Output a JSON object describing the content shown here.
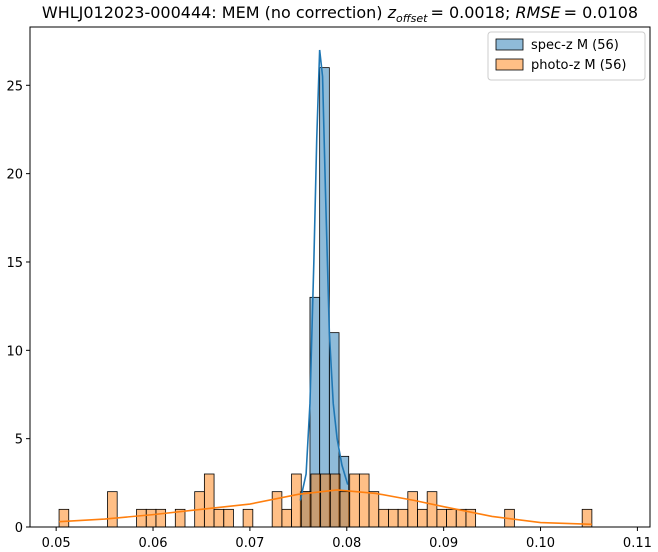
{
  "chart_data": {
    "type": "histogram",
    "title": {
      "text": "WHLJ012023-000444: MEM (no correction)",
      "z_label": "z",
      "z_sub": "offset",
      "z_value": "= 0.0018;",
      "rmse_label": "RMSE",
      "rmse_value": "= 0.0108"
    },
    "xlim": [
      0.0473,
      0.1113
    ],
    "ylim": [
      0,
      28.3
    ],
    "xticks": [
      0.05,
      0.06,
      0.07,
      0.08,
      0.09,
      {
        "value": 0.1,
        "label": "0.10"
      },
      0.11
    ],
    "yticks": [
      0,
      5,
      10,
      15,
      20,
      25
    ],
    "legend": "upper right",
    "series": [
      {
        "name": "spec-z M (56)",
        "color": "#1f77b4",
        "bins": [
          0.0752,
          0.0762,
          0.0772,
          0.0782,
          0.0792,
          0.0802
        ],
        "values": [
          2,
          13,
          26,
          11,
          4
        ],
        "kde_x": [
          0.0752,
          0.0758,
          0.0762,
          0.0766,
          0.0769,
          0.0772,
          0.0775,
          0.0778,
          0.0782,
          0.0786,
          0.079,
          0.0795,
          0.0801
        ],
        "kde_y": [
          1.5,
          3,
          7,
          15,
          22,
          27,
          25.5,
          19,
          11,
          7,
          5,
          3.5,
          2.4
        ]
      },
      {
        "name": "photo-z M (56)",
        "color": "#ff7f0e",
        "bins": [
          0.0503,
          0.0513,
          0.0523,
          0.0533,
          0.0543,
          0.0553,
          0.0563,
          0.0573,
          0.0583,
          0.0593,
          0.0603,
          0.0613,
          0.0623,
          0.0633,
          0.0643,
          0.0653,
          0.0663,
          0.0673,
          0.0683,
          0.0693,
          0.0703,
          0.0713,
          0.0723,
          0.0733,
          0.0743,
          0.0753,
          0.0763,
          0.0773,
          0.0783,
          0.0793,
          0.0803,
          0.0813,
          0.0823,
          0.0833,
          0.0843,
          0.0853,
          0.0863,
          0.0873,
          0.0883,
          0.0893,
          0.0903,
          0.0913,
          0.0923,
          0.0933,
          0.0943,
          0.0953,
          0.0963,
          0.0973,
          0.0983,
          0.0993,
          0.1003,
          0.1013,
          0.1023,
          0.1033,
          0.1043,
          0.1053
        ],
        "values": [
          1,
          0,
          0,
          0,
          0,
          2,
          0,
          0,
          1,
          1,
          1,
          0,
          1,
          0,
          2,
          3,
          1,
          1,
          0,
          1,
          0,
          0,
          2,
          1,
          3,
          2,
          3,
          3,
          3,
          2,
          3,
          3,
          2,
          1,
          1,
          1,
          2,
          1,
          2,
          1,
          1,
          1,
          1,
          0,
          0,
          0,
          1,
          0,
          0,
          0,
          0,
          0,
          0,
          0,
          1
        ],
        "kde_x": [
          0.0503,
          0.055,
          0.06,
          0.065,
          0.07,
          0.075,
          0.079,
          0.083,
          0.087,
          0.09,
          0.095,
          0.1,
          0.1053
        ],
        "kde_y": [
          0.3,
          0.45,
          0.7,
          1.0,
          1.3,
          1.85,
          2.1,
          1.9,
          1.5,
          1.15,
          0.6,
          0.25,
          0.15
        ]
      }
    ]
  }
}
